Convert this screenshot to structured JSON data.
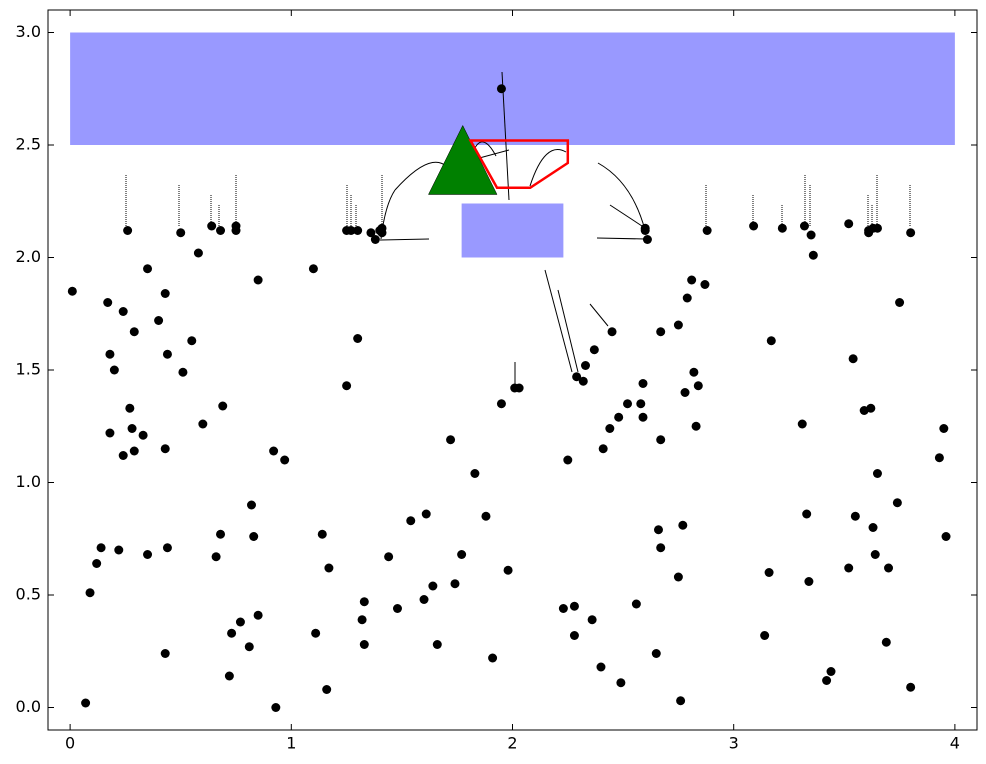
{
  "chart_data": {
    "type": "scatter",
    "xlim": [
      -0.1,
      4.1
    ],
    "ylim": [
      -0.1,
      3.1
    ],
    "xticks": [
      0,
      1,
      2,
      3,
      4
    ],
    "yticks": [
      {
        "value": 0,
        "label": "0.0"
      },
      {
        "value": 0.5,
        "label": "0.5"
      },
      {
        "value": 1,
        "label": "1.0"
      },
      {
        "value": 1.5,
        "label": "1.5"
      },
      {
        "value": 2,
        "label": "2.0"
      },
      {
        "value": 2.5,
        "label": "2.5"
      },
      {
        "value": 3,
        "label": "3.0"
      }
    ],
    "color": "#000000",
    "x": [
      0.01,
      0.07,
      0.09,
      0.12,
      0.14,
      0.17,
      0.18,
      0.18,
      0.2,
      0.22,
      0.24,
      0.24,
      0.26,
      0.27,
      0.28,
      0.29,
      0.29,
      0.33,
      0.35,
      0.35,
      0.4,
      0.43,
      0.43,
      0.44,
      0.43,
      0.44,
      0.5,
      0.51,
      0.55,
      0.58,
      0.6,
      0.64,
      0.66,
      0.68,
      0.68,
      0.69,
      0.72,
      0.73,
      0.75,
      0.75,
      0.77,
      0.81,
      0.82,
      0.83,
      0.85,
      0.85,
      0.92,
      0.93,
      0.97,
      1.1,
      1.11,
      1.14,
      1.16,
      1.17,
      1.25,
      1.25,
      1.27,
      1.3,
      1.3,
      1.32,
      1.33,
      1.33,
      1.36,
      1.38,
      1.4,
      1.41,
      1.41,
      1.44,
      1.48,
      1.54,
      1.6,
      1.61,
      1.64,
      1.66,
      1.72,
      1.74,
      1.77,
      1.83,
      1.88,
      1.91,
      1.95,
      1.95,
      1.98,
      2.01,
      2.03,
      2.23,
      2.25,
      2.28,
      2.28,
      2.29,
      2.32,
      2.33,
      2.36,
      2.37,
      2.4,
      2.41,
      2.44,
      2.45,
      2.48,
      2.49,
      2.52,
      2.56,
      2.58,
      2.59,
      2.59,
      2.6,
      2.6,
      2.61,
      2.65,
      2.66,
      2.67,
      2.67,
      2.67,
      2.75,
      2.75,
      2.76,
      2.77,
      2.78,
      2.79,
      2.81,
      2.82,
      2.83,
      2.84,
      2.87,
      2.88,
      3.09,
      3.14,
      3.16,
      3.17,
      3.22,
      3.31,
      3.32,
      3.33,
      3.34,
      3.35,
      3.36,
      3.42,
      3.44,
      3.52,
      3.52,
      3.54,
      3.55,
      3.59,
      3.61,
      3.61,
      3.63,
      3.62,
      3.63,
      3.65,
      3.64,
      3.65,
      3.69,
      3.7,
      3.74,
      3.75,
      3.8,
      3.8,
      3.93,
      3.95,
      3.96
    ],
    "values": [
      1.85,
      0.02,
      0.51,
      0.64,
      0.71,
      1.8,
      1.57,
      1.22,
      1.5,
      0.7,
      1.76,
      1.12,
      2.12,
      1.33,
      1.24,
      1.67,
      1.14,
      1.21,
      1.95,
      0.68,
      1.72,
      0.24,
      1.84,
      1.57,
      1.15,
      0.71,
      2.11,
      1.49,
      1.63,
      2.02,
      1.26,
      2.14,
      0.67,
      0.77,
      2.12,
      1.34,
      0.14,
      0.33,
      2.14,
      2.12,
      0.38,
      0.27,
      0.9,
      0.76,
      1.9,
      0.41,
      1.14,
      0.0,
      1.1,
      1.95,
      0.33,
      0.77,
      0.08,
      0.62,
      1.43,
      2.12,
      2.12,
      2.12,
      1.64,
      0.39,
      0.28,
      0.47,
      2.11,
      2.08,
      2.12,
      2.11,
      2.13,
      0.67,
      0.44,
      0.83,
      0.48,
      0.86,
      0.54,
      0.28,
      1.19,
      0.55,
      0.68,
      1.04,
      0.85,
      0.22,
      2.75,
      1.35,
      0.61,
      1.42,
      1.42,
      0.44,
      1.1,
      0.45,
      0.32,
      1.47,
      1.45,
      1.52,
      0.39,
      1.59,
      0.18,
      1.15,
      1.24,
      1.67,
      1.29,
      0.11,
      1.35,
      0.46,
      1.35,
      1.29,
      1.44,
      2.13,
      2.12,
      2.08,
      0.24,
      0.79,
      0.71,
      1.67,
      1.19,
      1.7,
      0.58,
      0.03,
      0.81,
      1.4,
      1.82,
      1.9,
      1.49,
      1.25,
      1.43,
      1.88,
      2.12,
      2.14,
      0.32,
      0.6,
      1.63,
      2.13,
      1.26,
      2.14,
      0.86,
      0.56,
      2.1,
      2.01,
      0.12,
      0.16,
      0.62,
      2.15,
      1.55,
      0.85,
      1.32,
      2.11,
      2.12,
      0.8,
      1.33,
      2.13,
      2.13,
      0.68,
      1.04,
      0.29,
      0.62,
      0.91,
      1.8,
      2.11,
      0.09,
      1.11,
      1.24,
      0.76
    ],
    "rectangles": [
      {
        "color": "#9999ff",
        "x": [
          0,
          4
        ],
        "y": [
          2.5,
          3.0
        ]
      },
      {
        "color": "#9999ff",
        "x": [
          1.77,
          2.23
        ],
        "y": [
          2.0,
          2.24
        ]
      }
    ],
    "polygons": [
      {
        "color": "#008000",
        "fill": true,
        "x": [
          1.62,
          1.775,
          1.93
        ],
        "y": [
          2.28,
          2.587,
          2.28
        ]
      },
      {
        "color": "#ff0000",
        "fill": false,
        "x": [
          1.81,
          2.25,
          2.25,
          2.08,
          1.93
        ],
        "y": [
          2.52,
          2.52,
          2.42,
          2.31,
          2.31
        ]
      }
    ]
  }
}
